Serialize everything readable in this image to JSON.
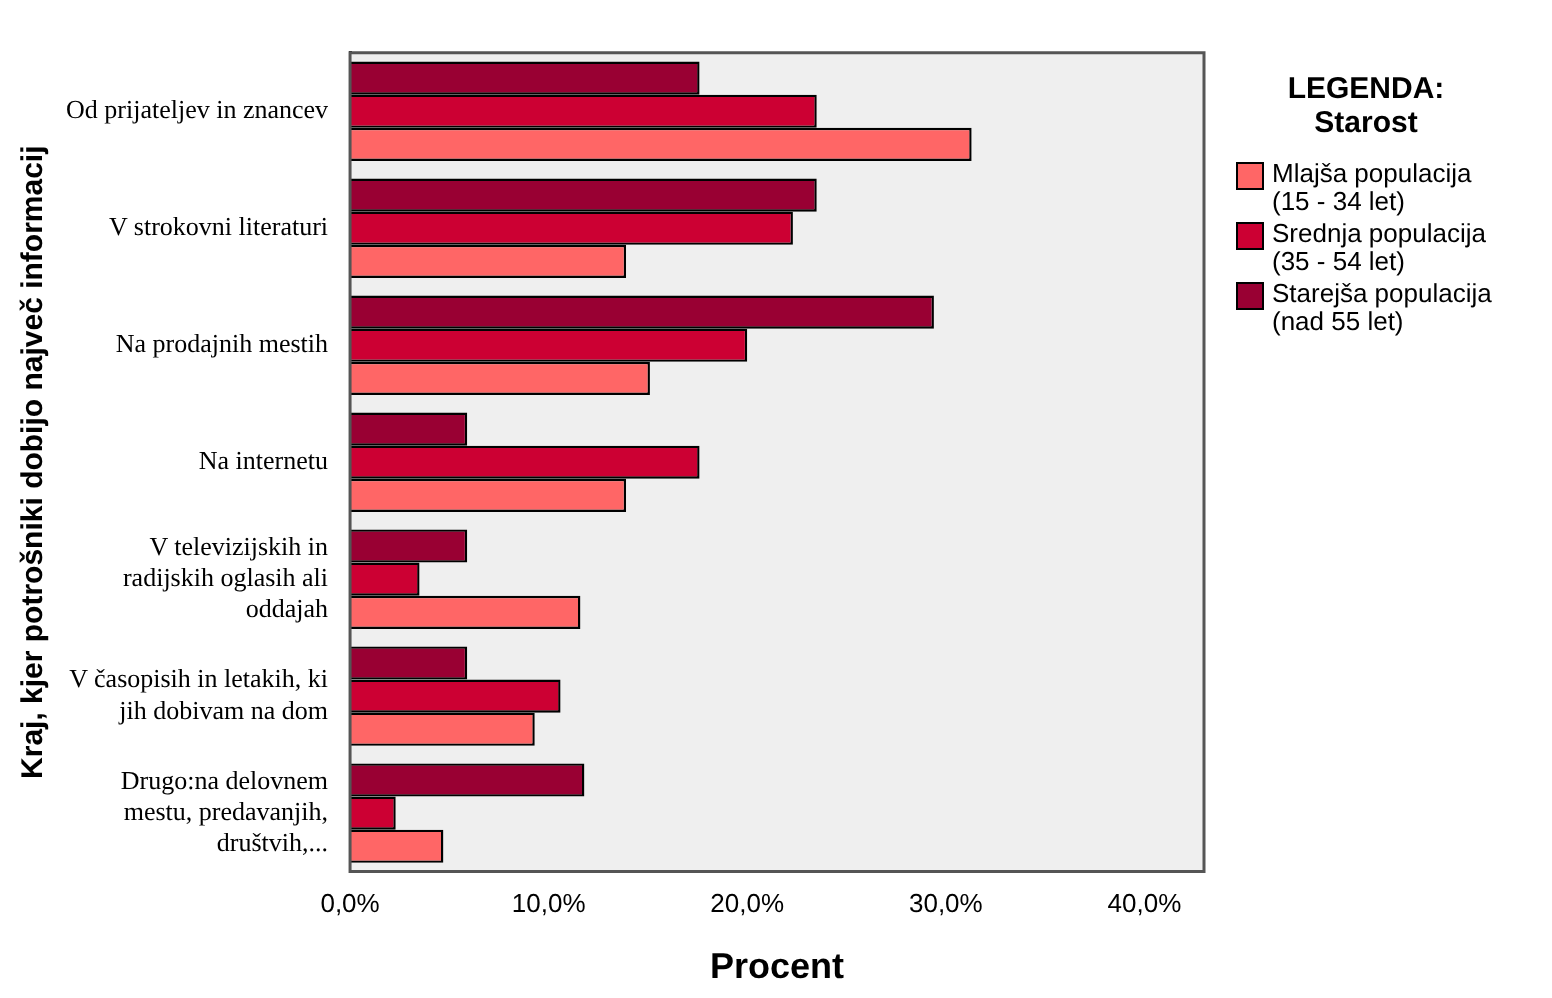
{
  "chart_data": {
    "type": "bar",
    "orientation": "horizontal",
    "xlabel": "Procent",
    "ylabel": "Kraj, kjer potrošniki dobijo največ informacij",
    "legend_title": "LEGENDA: Starost",
    "legend": "right",
    "categories": [
      "Od prijateljev in znancev",
      "V strokovni literaturi",
      "Na prodajnih mestih",
      "Na internetu",
      "V televizijskih in radijskih oglasih ali oddajah",
      "V časopisih in letakih, ki jih dobivam na dom",
      "Drugo:na delovnem mestu, predavanjih, društvih,..."
    ],
    "series": [
      {
        "name": "Mlajša populacija (15 - 34 let)",
        "color": "#ff6666",
        "values": [
          31.3,
          13.9,
          15.1,
          13.9,
          11.6,
          9.3,
          4.7
        ]
      },
      {
        "name": "Srednja populacija (35 - 54 let)",
        "color": "#cc0033",
        "values": [
          23.5,
          22.3,
          20.0,
          17.6,
          3.5,
          10.6,
          2.3
        ]
      },
      {
        "name": "Starejša populacija (nad 55 let)",
        "color": "#990033",
        "values": [
          17.6,
          23.5,
          29.4,
          5.9,
          5.9,
          5.9,
          11.8
        ]
      }
    ],
    "xlim": [
      0,
      43
    ],
    "xticks": [
      {
        "value": 0,
        "label": "0,0%"
      },
      {
        "value": 10,
        "label": "10,0%"
      },
      {
        "value": 20,
        "label": "20,0%"
      },
      {
        "value": 30,
        "label": "30,0%"
      },
      {
        "value": 40,
        "label": "40,0%"
      }
    ],
    "grid": false
  }
}
